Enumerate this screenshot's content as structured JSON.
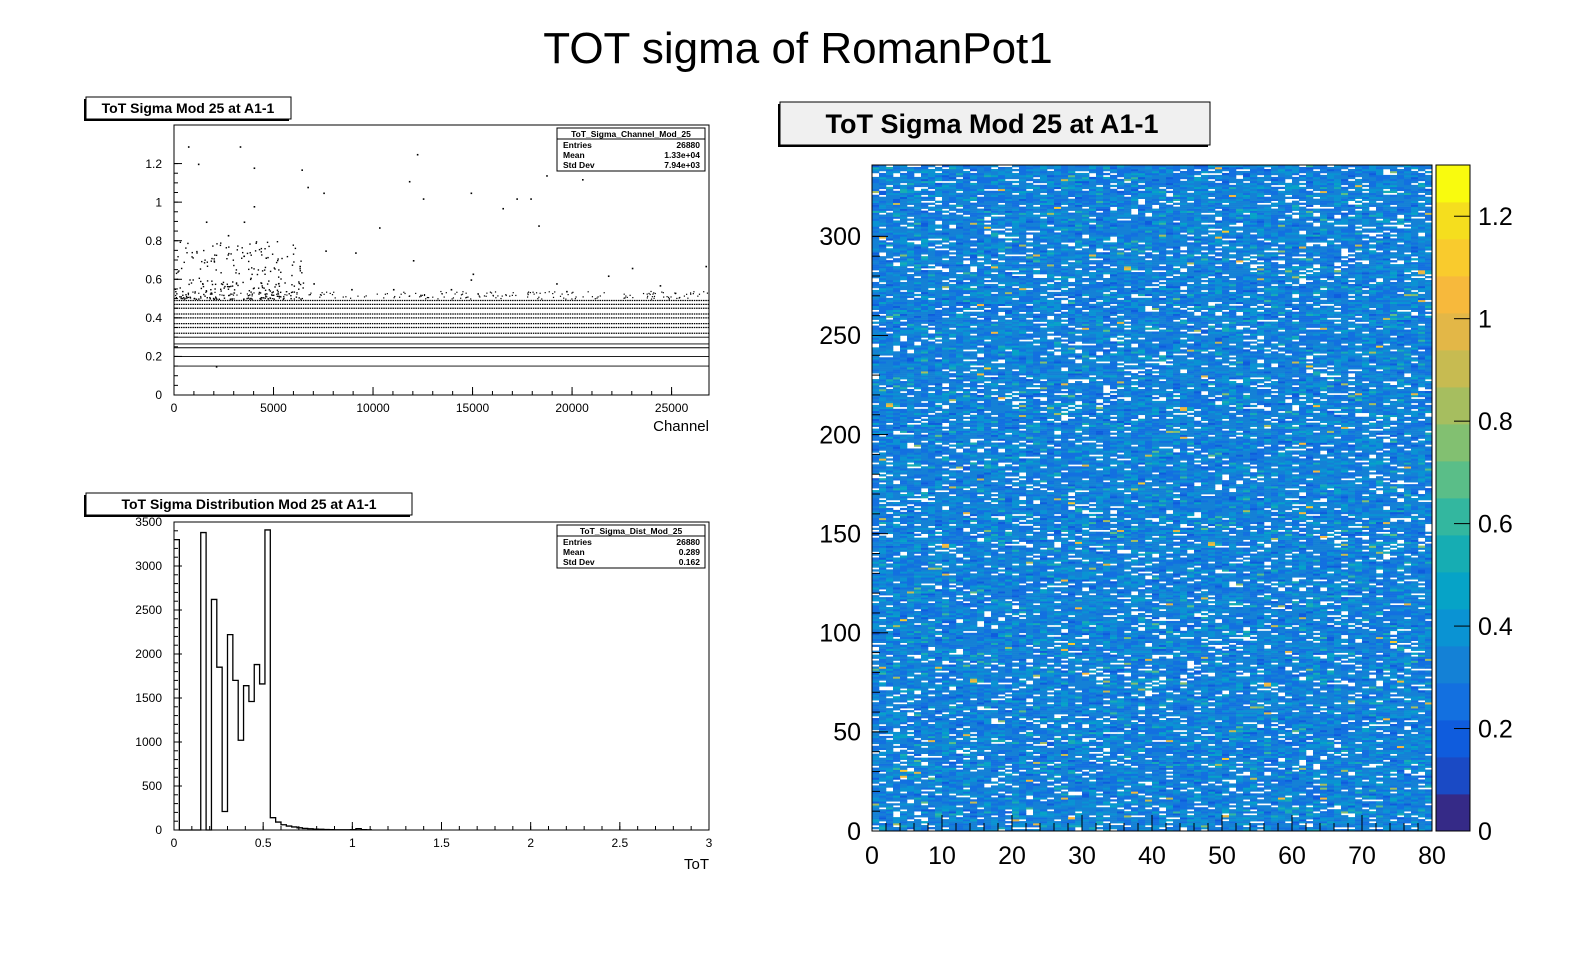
{
  "canvas_title": "TOT sigma of RomanPot1",
  "chart_data": [
    {
      "type": "scatter",
      "title": "ToT Sigma Mod 25 at A1-1",
      "xlabel": "Channel",
      "ylabel": "",
      "xlim": [
        0,
        26880
      ],
      "ylim": [
        0,
        1.4
      ],
      "x_ticks": [
        "0",
        "5000",
        "10000",
        "15000",
        "20000",
        "25000"
      ],
      "y_ticks": [
        "0",
        "0.2",
        "0.4",
        "0.6",
        "0.8",
        "1",
        "1.2"
      ],
      "stats": {
        "name": "ToT_Sigma_Channel_Mod_25",
        "rows": [
          {
            "label": "Entries",
            "value": "26880"
          },
          {
            "label": "Mean",
            "value": "1.33e+04"
          },
          {
            "label": "Std Dev",
            "value": "7.94e+03"
          }
        ]
      },
      "bands": [
        0.15,
        0.2,
        0.245,
        0.265,
        0.3,
        0.32,
        0.35,
        0.37,
        0.4,
        0.42,
        0.45,
        0.47,
        0.49
      ],
      "outliers": [
        [
          700,
          1.29
        ],
        [
          3300,
          1.29
        ],
        [
          12200,
          1.25
        ],
        [
          1200,
          1.2
        ],
        [
          4000,
          1.18
        ],
        [
          6400,
          1.17
        ],
        [
          11800,
          1.11
        ],
        [
          18700,
          1.14
        ],
        [
          20500,
          1.12
        ],
        [
          6700,
          1.08
        ],
        [
          7500,
          1.05
        ],
        [
          14900,
          1.05
        ],
        [
          17200,
          1.02
        ],
        [
          12500,
          1.02
        ],
        [
          4000,
          0.98
        ],
        [
          16500,
          0.97
        ],
        [
          17900,
          1.02
        ],
        [
          1600,
          0.9
        ],
        [
          3500,
          0.9
        ],
        [
          10300,
          0.87
        ],
        [
          18300,
          0.88
        ],
        [
          2700,
          0.83
        ],
        [
          7600,
          0.75
        ],
        [
          9100,
          0.74
        ],
        [
          12000,
          0.7
        ],
        [
          14900,
          0.6
        ],
        [
          15000,
          0.63
        ],
        [
          19200,
          0.58
        ],
        [
          21800,
          0.62
        ],
        [
          23000,
          0.66
        ],
        [
          26700,
          0.67
        ],
        [
          11000,
          0.55
        ],
        [
          13900,
          0.55
        ],
        [
          8900,
          0.55
        ],
        [
          24400,
          0.57
        ],
        [
          6300,
          0.67
        ],
        [
          7000,
          0.58
        ],
        [
          19700,
          0.54
        ],
        [
          2100,
          0.15
        ]
      ]
    },
    {
      "type": "bar",
      "title": "ToT Sigma Distribution Mod 25 at A1-1",
      "xlabel": "ToT",
      "ylabel": "",
      "xlim": [
        0,
        3
      ],
      "ylim": [
        0,
        3500
      ],
      "x_ticks": [
        "0",
        "0.5",
        "1",
        "1.5",
        "2",
        "2.5",
        "3"
      ],
      "y_ticks": [
        "0",
        "500",
        "1000",
        "1500",
        "2000",
        "2500",
        "3000",
        "3500"
      ],
      "stats": {
        "name": "ToT_Sigma_Dist_Mod_25",
        "rows": [
          {
            "label": "Entries",
            "value": "26880"
          },
          {
            "label": "Mean",
            "value": "0.289"
          },
          {
            "label": "Std Dev",
            "value": "0.162"
          }
        ]
      },
      "bin_edges": [
        0,
        0.03,
        0.06,
        0.09,
        0.12,
        0.15,
        0.18,
        0.21,
        0.24,
        0.27,
        0.3,
        0.33,
        0.36,
        0.39,
        0.42,
        0.45,
        0.48,
        0.51,
        0.54,
        0.57,
        0.6,
        0.63,
        0.66,
        0.69,
        0.72,
        0.75,
        0.78,
        0.81,
        0.84,
        0.87,
        0.9,
        0.93,
        0.96,
        0.99,
        1.02,
        1.05,
        1.08,
        1.11
      ],
      "values": [
        3300,
        0,
        0,
        0,
        0,
        3380,
        0,
        2620,
        1850,
        210,
        2220,
        1700,
        1020,
        1640,
        1460,
        1880,
        1660,
        3410,
        140,
        90,
        60,
        45,
        35,
        25,
        18,
        14,
        10,
        8,
        6,
        4,
        3,
        2,
        3,
        4,
        15,
        4,
        2
      ]
    },
    {
      "type": "heatmap",
      "title": "ToT Sigma Mod 25 at A1-1",
      "xlabel": "",
      "ylabel": "",
      "xlim": [
        0,
        80
      ],
      "ylim": [
        0,
        336
      ],
      "zlim": [
        0,
        1.3
      ],
      "x_ticks": [
        "0",
        "10",
        "20",
        "30",
        "40",
        "50",
        "60",
        "70",
        "80"
      ],
      "y_ticks": [
        "0",
        "50",
        "100",
        "150",
        "200",
        "250",
        "300"
      ],
      "z_ticks": [
        "0",
        "0.2",
        "0.4",
        "0.6",
        "0.8",
        "1",
        "1.2"
      ],
      "z_distribution": "per-channel values match the ToT distribution histogram: mostly 0.15-0.5, about 12% empty cells, sparse outliers up to 1.3",
      "palette": [
        "#352a87",
        "#1a4ac5",
        "#0f5cdd",
        "#1370e0",
        "#1481d6",
        "#0a93d3",
        "#06a3c7",
        "#16adb3",
        "#33b79f",
        "#5abe88",
        "#82c071",
        "#a6be5f",
        "#c7bb51",
        "#e3b747",
        "#f7b93c",
        "#f9cb2d",
        "#f5de1e",
        "#f9fb0e"
      ]
    }
  ]
}
